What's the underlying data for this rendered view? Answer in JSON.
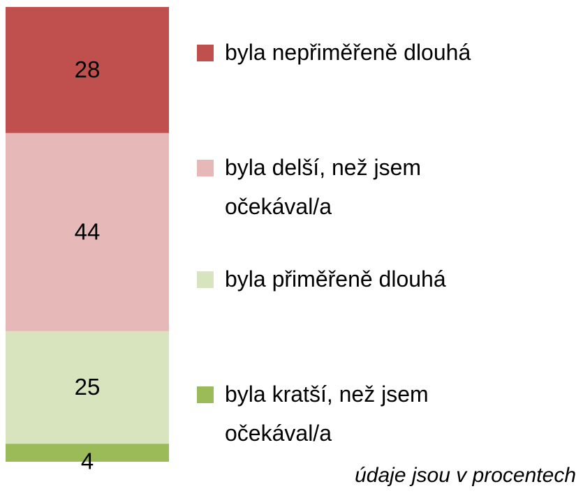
{
  "chart_data": {
    "type": "stacked-bar",
    "series": [
      {
        "name": "byla kratší, než jsem očekával/a",
        "color": "#9bbb59",
        "values": [
          4
        ]
      },
      {
        "name": "byla přiměřeně dlouhá",
        "color": "#d7e4bd",
        "values": [
          25
        ]
      },
      {
        "name": "byla delší, než jsem očekával/a",
        "color": "#e6b9b8",
        "values": [
          44
        ]
      },
      {
        "name": "byla nepřiměřeně dlouhá",
        "color": "#c0504d",
        "values": [
          28
        ]
      }
    ],
    "annotation": "údaje jsou v procentech"
  }
}
